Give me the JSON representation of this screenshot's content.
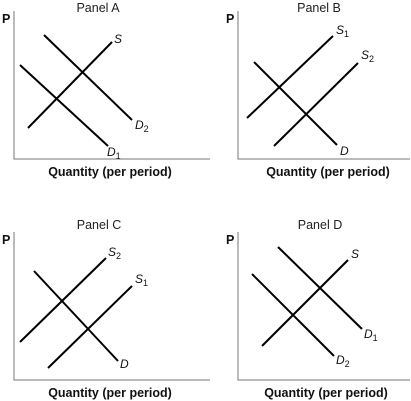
{
  "panels": [
    {
      "id": "A",
      "title": "Panel A",
      "y_axis_label": "P",
      "x_axis_label": "Quantity (per period)",
      "curves": [
        {
          "symbol": "S",
          "sub": ""
        },
        {
          "symbol": "D",
          "sub": "2"
        },
        {
          "symbol": "D",
          "sub": "1"
        }
      ]
    },
    {
      "id": "B",
      "title": "Panel B",
      "y_axis_label": "P",
      "x_axis_label": "Quantity (per period)",
      "curves": [
        {
          "symbol": "S",
          "sub": "1"
        },
        {
          "symbol": "S",
          "sub": "2"
        },
        {
          "symbol": "D",
          "sub": ""
        }
      ]
    },
    {
      "id": "C",
      "title": "Panel C",
      "y_axis_label": "P",
      "x_axis_label": "Quantity (per period)",
      "curves": [
        {
          "symbol": "S",
          "sub": "2"
        },
        {
          "symbol": "S",
          "sub": "1"
        },
        {
          "symbol": "D",
          "sub": ""
        }
      ]
    },
    {
      "id": "D",
      "title": "Panel D",
      "y_axis_label": "P",
      "x_axis_label": "Quantity (per period)",
      "curves": [
        {
          "symbol": "S",
          "sub": ""
        },
        {
          "symbol": "D",
          "sub": "1"
        },
        {
          "symbol": "D",
          "sub": "2"
        }
      ]
    }
  ]
}
